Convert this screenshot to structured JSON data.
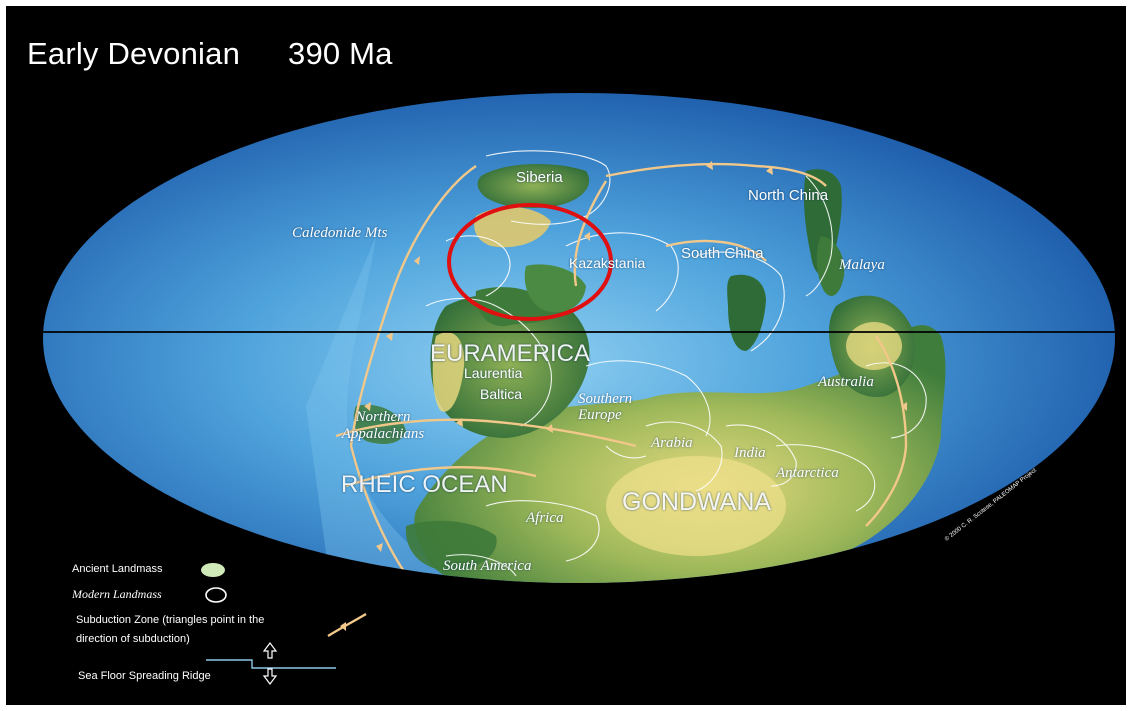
{
  "title": {
    "period": "Early Devonian",
    "age": "390 Ma"
  },
  "map_labels": {
    "siberia": "Siberia",
    "caledonide": "Caledonide Mts",
    "kazakstania": "Kazakstania",
    "north_china": "North China",
    "south_china": "South China",
    "malaya": "Malaya",
    "euramerica": "EURAMERICA",
    "laurentia": "Laurentia",
    "baltica": "Baltica",
    "southern_europe": "Southern Europe",
    "northern_appalachians": "Northern Appalachians",
    "rheic_ocean": "RHEIC OCEAN",
    "gondwana": "GONDWANA",
    "africa": "Africa",
    "south_america": "South America",
    "arabia": "Arabia",
    "india": "India",
    "antarctica": "Antarctica",
    "australia": "Australia"
  },
  "copyright": "© 2000  C. R. Scotese, PALEOMAP Project",
  "legend": {
    "ancient": "Ancient Landmass",
    "modern": "Modern Landmass",
    "subduction_1": "Subduction Zone  (triangles point in the",
    "subduction_2": "direction of subduction)",
    "ridge": "Sea Floor Spreading Ridge"
  },
  "colors": {
    "ocean_deep": "#1d62b4",
    "ocean_light": "#7fc4ec",
    "land_dark": "#2f6b37",
    "land_mid": "#6f9a46",
    "land_light": "#d9d27a",
    "subduction": "#f2c88a",
    "highlight_circle": "#e01010"
  }
}
